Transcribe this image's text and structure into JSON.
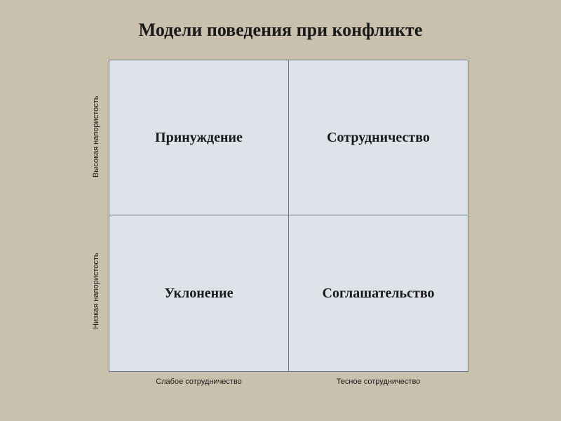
{
  "title": "Модели поведения  при конфликте",
  "matrix": {
    "type": "2x2-quadrant",
    "background_color": "#c9c1ad",
    "cell_fill": "#dde3e8",
    "cell_border": "#6b7a8a",
    "text_color": "#1a1a1a",
    "title_fontsize": 26,
    "cell_fontsize": 20,
    "axis_fontsize": 11,
    "cells": {
      "top_left": "Принуждение",
      "top_right": "Сотрудничество",
      "bottom_left": "Уклонение",
      "bottom_right": "Соглашательство"
    },
    "y_axis": {
      "top": "Высокая напористость",
      "bottom": "Низкая напористость"
    },
    "x_axis": {
      "left": "Слабое сотрудничество",
      "right": "Тесное сотрудничество"
    }
  }
}
